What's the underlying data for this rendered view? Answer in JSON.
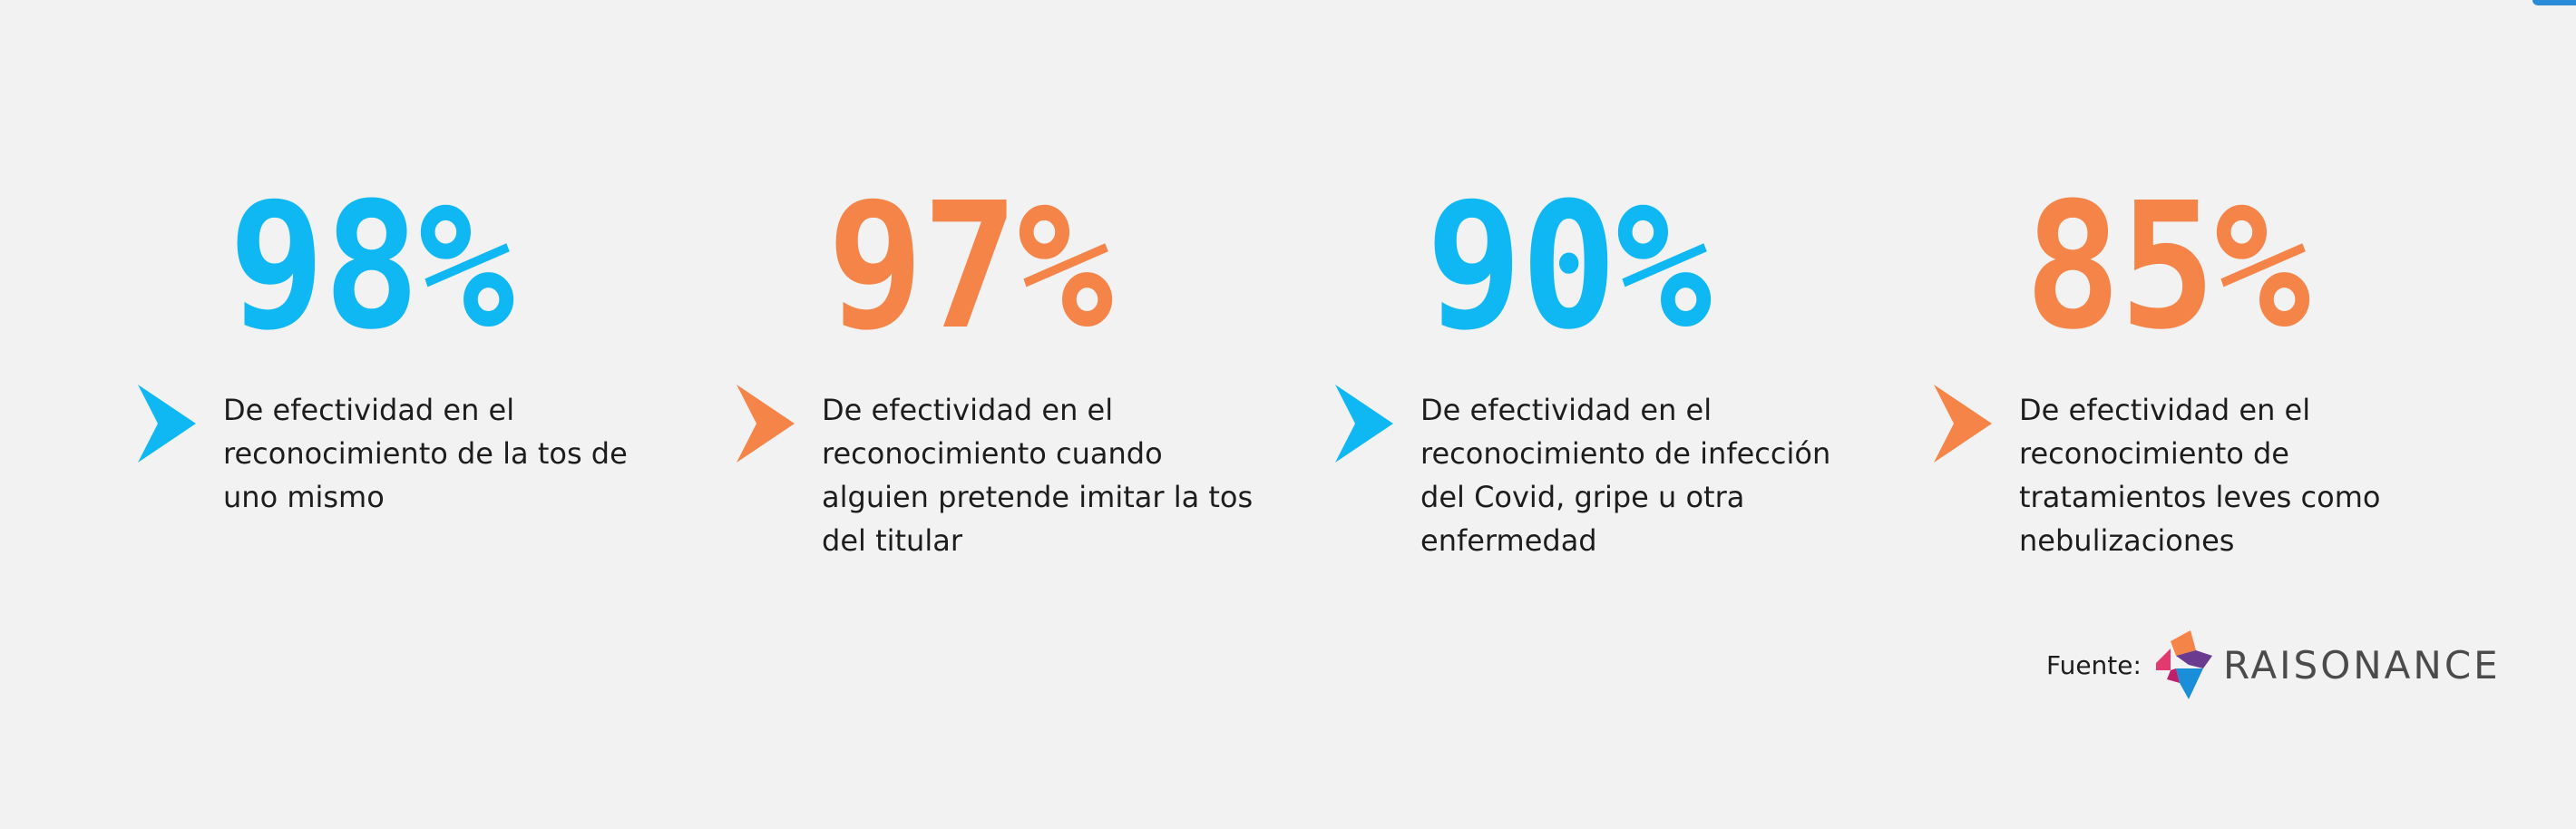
{
  "stats": [
    {
      "value": "98%",
      "color": "#10b8f3",
      "text": "De efectividad en el reconocimiento de la tos de uno mismo"
    },
    {
      "value": "97%",
      "color": "#f58448",
      "text": "De efectividad en el reconocimiento cuando alguien pretende imitar la tos del titular"
    },
    {
      "value": "90%",
      "color": "#10b8f3",
      "text": "De efectividad en el reconocimiento de infección del Covid, gripe u otra enfermedad"
    },
    {
      "value": "85%",
      "color": "#f58448",
      "text": "De efectividad en el reconocimiento de tratamientos leves como nebulizaciones"
    }
  ],
  "source": {
    "label": "Fuente:",
    "logo_text": "RAISONANCE",
    "logo_icon": "raisonance-logo-icon"
  },
  "colors": {
    "background": "#f2f2f2",
    "blue": "#10b8f3",
    "orange": "#f58448",
    "text": "#1d1d1d"
  }
}
